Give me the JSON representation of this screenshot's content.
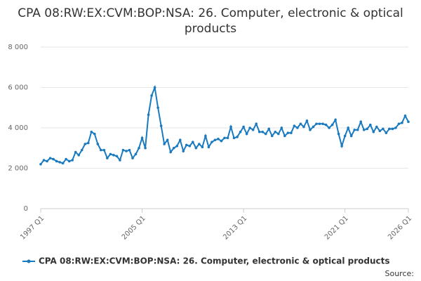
{
  "chart_data": {
    "type": "line",
    "title": "CPA 08:RW:EX:CVM:BOP:NSA: 26. Computer, electronic & optical products",
    "categories": [
      "1997 Q1",
      null,
      null,
      null,
      null,
      null,
      null,
      null,
      null,
      null,
      null,
      null,
      null,
      null,
      null,
      null,
      null,
      null,
      null,
      null,
      null,
      null,
      null,
      null,
      null,
      null,
      null,
      null,
      null,
      null,
      null,
      null,
      "2005 Q1",
      null,
      null,
      null,
      null,
      null,
      null,
      null,
      null,
      null,
      null,
      null,
      null,
      null,
      null,
      null,
      null,
      null,
      null,
      null,
      null,
      null,
      null,
      null,
      null,
      null,
      null,
      null,
      null,
      null,
      null,
      null,
      "2013 Q1",
      null,
      null,
      null,
      null,
      null,
      null,
      null,
      null,
      null,
      null,
      null,
      null,
      null,
      null,
      null,
      null,
      null,
      null,
      null,
      null,
      null,
      null,
      null,
      null,
      null,
      null,
      null,
      null,
      null,
      null,
      null,
      "2021 Q1",
      null,
      null,
      null,
      null,
      null,
      null,
      null,
      null,
      null,
      null,
      null,
      null,
      null,
      null,
      null,
      null,
      null,
      null,
      null,
      "2026 Q1"
    ],
    "series": [
      {
        "name": "CPA 08:RW:EX:CVM:BOP:NSA: 26. Computer, electronic & optical products",
        "color": "#1a7abf",
        "values": [
          2200,
          2400,
          2350,
          2500,
          2450,
          2350,
          2300,
          2250,
          2450,
          2350,
          2400,
          2800,
          2650,
          2900,
          3200,
          3250,
          3800,
          3700,
          3200,
          2900,
          2900,
          2500,
          2700,
          2650,
          2600,
          2400,
          2900,
          2850,
          2900,
          2500,
          2700,
          3000,
          3500,
          3000,
          4650,
          5600,
          6000,
          5000,
          4100,
          3200,
          3400,
          2800,
          3000,
          3100,
          3400,
          2850,
          3150,
          3100,
          3300,
          3000,
          3200,
          3050,
          3600,
          3050,
          3300,
          3400,
          3450,
          3350,
          3500,
          3500,
          4050,
          3500,
          3550,
          3800,
          4050,
          3700,
          4000,
          3900,
          4200,
          3800,
          3800,
          3700,
          3950,
          3600,
          3800,
          3700,
          4000,
          3600,
          3750,
          3750,
          4100,
          4000,
          4200,
          4050,
          4350,
          3900,
          4050,
          4200,
          4200,
          4200,
          4150,
          4000,
          4150,
          4400,
          3700,
          3100,
          3600,
          4000,
          3600,
          3900,
          3900,
          4300,
          3900,
          3950,
          4150,
          3800,
          4050,
          3850,
          3950,
          3750,
          3950,
          3950,
          4000,
          4200,
          4250,
          4600,
          4300
        ]
      }
    ],
    "ylim": [
      0,
      8000
    ],
    "yticks": [
      0,
      {
        "value": 2000,
        "label": "2 000"
      },
      {
        "value": 4000,
        "label": "4 000"
      },
      {
        "value": 6000,
        "label": "6 000"
      },
      {
        "value": 8000,
        "label": "8 000"
      }
    ],
    "grid": true,
    "source": "Source:"
  }
}
